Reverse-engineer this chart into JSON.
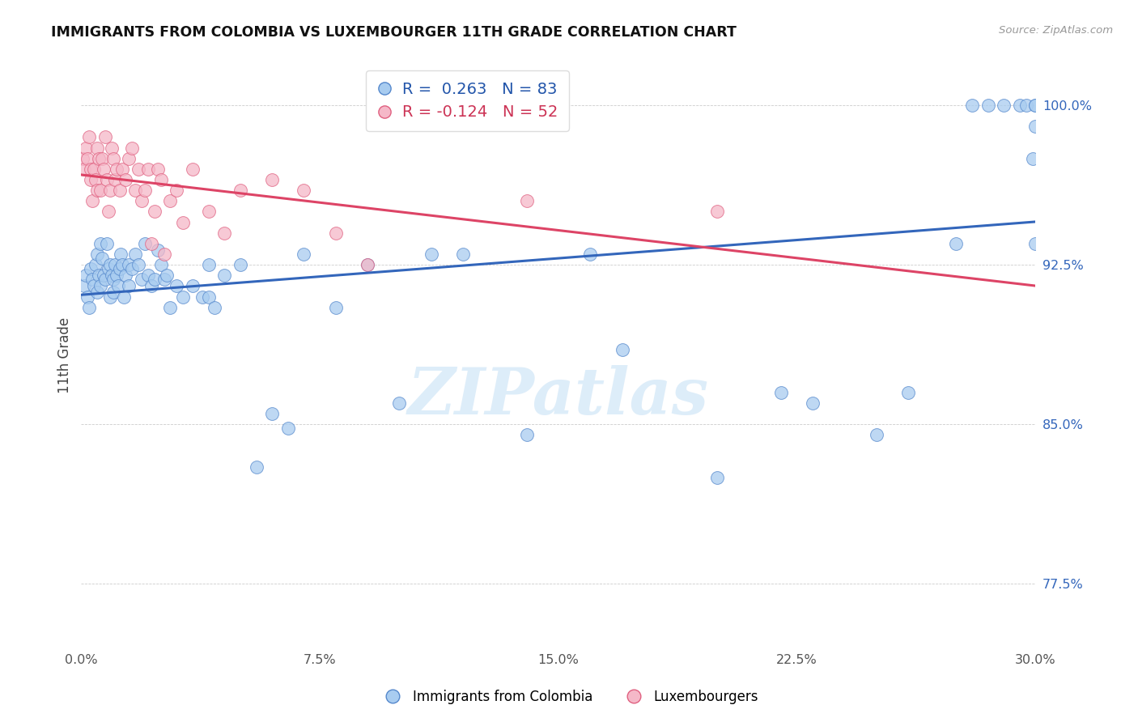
{
  "title": "IMMIGRANTS FROM COLOMBIA VS LUXEMBOURGER 11TH GRADE CORRELATION CHART",
  "source": "Source: ZipAtlas.com",
  "ylabel": "11th Grade",
  "xmin": 0.0,
  "xmax": 30.0,
  "ymin": 74.5,
  "ymax": 102.0,
  "yticks": [
    77.5,
    85.0,
    92.5,
    100.0
  ],
  "xticks": [
    0.0,
    7.5,
    15.0,
    22.5,
    30.0
  ],
  "blue_label": "Immigrants from Colombia",
  "pink_label": "Luxembourgers",
  "blue_R": 0.263,
  "blue_N": 83,
  "pink_R": -0.124,
  "pink_N": 52,
  "blue_color": "#A8CCF0",
  "pink_color": "#F5B8C8",
  "blue_edge_color": "#5588CC",
  "pink_edge_color": "#E06080",
  "blue_line_color": "#3366BB",
  "pink_line_color": "#DD4466",
  "watermark_color": "#D8EAF8",
  "blue_x": [
    0.1,
    0.15,
    0.2,
    0.25,
    0.3,
    0.35,
    0.4,
    0.45,
    0.5,
    0.5,
    0.55,
    0.6,
    0.6,
    0.65,
    0.7,
    0.75,
    0.8,
    0.85,
    0.9,
    0.9,
    0.95,
    1.0,
    1.0,
    1.05,
    1.1,
    1.15,
    1.2,
    1.25,
    1.3,
    1.35,
    1.4,
    1.5,
    1.5,
    1.6,
    1.7,
    1.8,
    1.9,
    2.0,
    2.1,
    2.2,
    2.3,
    2.4,
    2.5,
    2.6,
    2.7,
    2.8,
    3.0,
    3.2,
    3.5,
    3.8,
    4.0,
    4.0,
    4.2,
    4.5,
    5.0,
    5.5,
    6.0,
    6.5,
    7.0,
    8.0,
    9.0,
    10.0,
    11.0,
    12.0,
    14.0,
    16.0,
    17.0,
    20.0,
    22.0,
    23.0,
    25.0,
    26.0,
    27.5,
    28.0,
    28.5,
    29.0,
    29.5,
    29.7,
    29.9,
    30.0,
    30.0,
    30.0,
    30.0
  ],
  "blue_y": [
    91.5,
    92.0,
    91.0,
    90.5,
    92.3,
    91.8,
    91.5,
    92.5,
    93.0,
    91.2,
    92.0,
    93.5,
    91.5,
    92.8,
    92.0,
    91.8,
    93.5,
    92.3,
    91.0,
    92.5,
    92.0,
    91.8,
    91.2,
    92.5,
    92.0,
    91.5,
    92.3,
    93.0,
    92.5,
    91.0,
    92.0,
    92.5,
    91.5,
    92.3,
    93.0,
    92.5,
    91.8,
    93.5,
    92.0,
    91.5,
    91.8,
    93.2,
    92.5,
    91.8,
    92.0,
    90.5,
    91.5,
    91.0,
    91.5,
    91.0,
    92.5,
    91.0,
    90.5,
    92.0,
    92.5,
    83.0,
    85.5,
    84.8,
    93.0,
    90.5,
    92.5,
    86.0,
    93.0,
    93.0,
    84.5,
    93.0,
    88.5,
    82.5,
    86.5,
    86.0,
    84.5,
    86.5,
    93.5,
    100.0,
    100.0,
    100.0,
    100.0,
    100.0,
    97.5,
    93.5,
    100.0,
    100.0,
    99.0
  ],
  "pink_x": [
    0.05,
    0.1,
    0.15,
    0.2,
    0.25,
    0.3,
    0.3,
    0.35,
    0.4,
    0.45,
    0.5,
    0.5,
    0.55,
    0.6,
    0.65,
    0.7,
    0.75,
    0.8,
    0.85,
    0.9,
    0.95,
    1.0,
    1.05,
    1.1,
    1.2,
    1.3,
    1.4,
    1.5,
    1.6,
    1.7,
    1.8,
    1.9,
    2.0,
    2.1,
    2.2,
    2.3,
    2.4,
    2.5,
    2.6,
    2.8,
    3.0,
    3.2,
    3.5,
    4.0,
    4.5,
    5.0,
    6.0,
    7.0,
    8.0,
    9.0,
    14.0,
    20.0
  ],
  "pink_y": [
    97.5,
    97.0,
    98.0,
    97.5,
    98.5,
    97.0,
    96.5,
    95.5,
    97.0,
    96.5,
    98.0,
    96.0,
    97.5,
    96.0,
    97.5,
    97.0,
    98.5,
    96.5,
    95.0,
    96.0,
    98.0,
    97.5,
    96.5,
    97.0,
    96.0,
    97.0,
    96.5,
    97.5,
    98.0,
    96.0,
    97.0,
    95.5,
    96.0,
    97.0,
    93.5,
    95.0,
    97.0,
    96.5,
    93.0,
    95.5,
    96.0,
    94.5,
    97.0,
    95.0,
    94.0,
    96.0,
    96.5,
    96.0,
    94.0,
    92.5,
    95.5,
    95.0
  ]
}
